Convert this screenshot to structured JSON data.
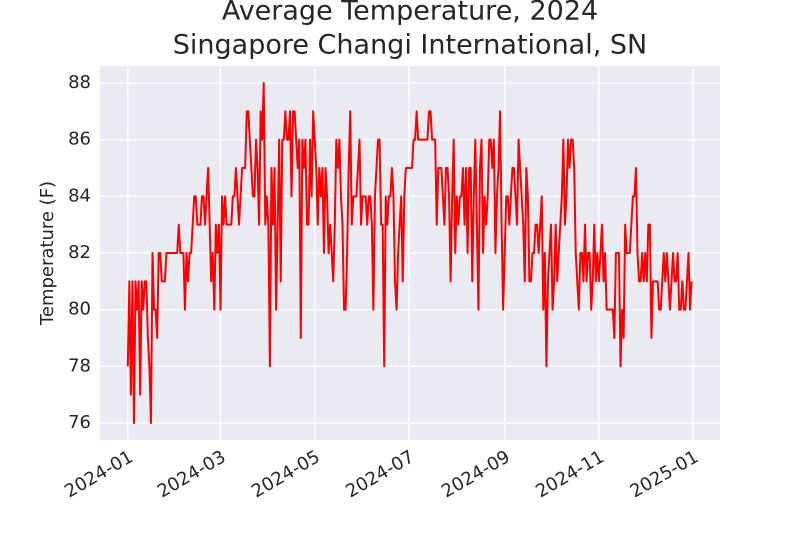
{
  "chart_data": {
    "type": "line",
    "title": "Average Temperature, 2024",
    "subtitle": "Singapore Changi International, SN",
    "y_label": "Temperature (F)",
    "color": "#ff0000",
    "grid": true,
    "xlim": [
      -18,
      383.4
    ],
    "ylim": [
      75.4,
      88.6
    ],
    "yticks": [
      76,
      78,
      80,
      82,
      84,
      86,
      88
    ],
    "xticks": [
      {
        "value": 0,
        "label": "2024-01"
      },
      {
        "value": 60,
        "label": "2024-03"
      },
      {
        "value": 121,
        "label": "2024-05"
      },
      {
        "value": 182,
        "label": "2024-07"
      },
      {
        "value": 244,
        "label": "2024-09"
      },
      {
        "value": 305,
        "label": "2024-11"
      },
      {
        "value": 366,
        "label": "2025-01"
      }
    ],
    "x": [
      0,
      1,
      2,
      3,
      4,
      5,
      6,
      7,
      8,
      9,
      10,
      11,
      12,
      13,
      14,
      15,
      16,
      17,
      18,
      19,
      20,
      21,
      22,
      23,
      24,
      25,
      26,
      27,
      28,
      29,
      30,
      31,
      32,
      33,
      34,
      35,
      36,
      37,
      38,
      39,
      40,
      41,
      42,
      43,
      44,
      45,
      46,
      47,
      48,
      49,
      50,
      51,
      52,
      53,
      54,
      55,
      56,
      57,
      58,
      59,
      60,
      61,
      62,
      63,
      64,
      65,
      66,
      67,
      68,
      69,
      70,
      71,
      72,
      73,
      74,
      75,
      76,
      77,
      78,
      79,
      80,
      81,
      82,
      83,
      84,
      85,
      86,
      87,
      88,
      89,
      90,
      91,
      92,
      93,
      94,
      95,
      96,
      97,
      98,
      99,
      100,
      101,
      102,
      103,
      104,
      105,
      106,
      107,
      108,
      109,
      110,
      111,
      112,
      113,
      114,
      115,
      116,
      117,
      118,
      119,
      120,
      121,
      122,
      123,
      124,
      125,
      126,
      127,
      128,
      129,
      130,
      131,
      132,
      133,
      134,
      135,
      136,
      137,
      138,
      139,
      140,
      141,
      142,
      143,
      144,
      145,
      146,
      147,
      148,
      149,
      150,
      151,
      152,
      153,
      154,
      155,
      156,
      157,
      158,
      159,
      160,
      161,
      162,
      163,
      164,
      165,
      166,
      167,
      168,
      169,
      170,
      171,
      172,
      173,
      174,
      175,
      176,
      177,
      178,
      179,
      180,
      181,
      182,
      183,
      184,
      185,
      186,
      187,
      188,
      189,
      190,
      191,
      192,
      193,
      194,
      195,
      196,
      197,
      198,
      199,
      200,
      201,
      202,
      203,
      204,
      205,
      206,
      207,
      208,
      209,
      210,
      211,
      212,
      213,
      214,
      215,
      216,
      217,
      218,
      219,
      220,
      221,
      222,
      223,
      224,
      225,
      226,
      227,
      228,
      229,
      230,
      231,
      232,
      233,
      234,
      235,
      236,
      237,
      238,
      239,
      240,
      241,
      242,
      243,
      244,
      245,
      246,
      247,
      248,
      249,
      250,
      251,
      252,
      253,
      254,
      255,
      256,
      257,
      258,
      259,
      260,
      261,
      262,
      263,
      264,
      265,
      266,
      267,
      268,
      269,
      270,
      271,
      272,
      273,
      274,
      275,
      276,
      277,
      278,
      279,
      280,
      281,
      282,
      283,
      284,
      285,
      286,
      287,
      288,
      289,
      290,
      291,
      292,
      293,
      294,
      295,
      296,
      297,
      298,
      299,
      300,
      301,
      302,
      303,
      304,
      305,
      306,
      307,
      308,
      309,
      310,
      311,
      312,
      313,
      314,
      315,
      316,
      317,
      318,
      319,
      320,
      321,
      322,
      323,
      324,
      325,
      326,
      327,
      328,
      329,
      330,
      331,
      332,
      333,
      334,
      335,
      336,
      337,
      338,
      339,
      340,
      341,
      342,
      343,
      344,
      345,
      346,
      347,
      348,
      349,
      350,
      351,
      352,
      353,
      354,
      355,
      356,
      357,
      358,
      359,
      360,
      361,
      362,
      363,
      364,
      365
    ],
    "values": [
      78,
      81,
      77,
      81,
      76,
      81,
      80,
      81,
      77,
      81,
      80,
      81,
      81,
      79,
      78,
      76,
      82,
      80,
      80,
      79,
      82,
      82,
      81,
      81,
      81,
      82,
      82,
      82,
      82,
      82,
      82,
      82,
      82,
      83,
      82,
      82,
      82,
      80,
      82,
      81,
      82,
      82,
      83,
      84,
      84,
      83,
      83,
      83,
      84,
      84,
      83,
      84,
      85,
      83,
      81,
      82,
      80,
      83,
      82,
      83,
      80,
      84,
      83,
      84,
      83,
      83,
      83,
      83,
      84,
      84,
      85,
      84,
      83,
      84,
      85,
      85,
      85,
      87,
      87,
      86,
      85,
      84,
      84,
      86,
      85,
      83,
      87,
      86,
      88,
      83,
      84,
      83,
      78,
      85,
      83,
      85,
      80,
      83,
      86,
      81,
      86,
      86,
      87,
      86,
      86,
      87,
      84,
      87,
      87,
      86,
      85,
      86,
      79,
      86,
      85,
      86,
      83,
      83,
      86,
      84,
      87,
      86,
      85,
      83,
      85,
      84,
      85,
      82,
      85,
      84,
      82,
      83,
      82,
      81,
      83,
      86,
      85,
      86,
      84,
      83,
      80,
      80,
      82,
      85,
      87,
      83,
      84,
      84,
      84,
      85,
      86,
      83,
      84,
      84,
      84,
      83,
      84,
      84,
      83,
      80,
      84,
      85,
      86,
      86,
      83,
      83,
      78,
      84,
      83,
      84,
      84,
      85,
      84,
      81,
      80,
      82,
      83,
      84,
      81,
      84,
      85,
      85,
      85,
      85,
      85,
      86,
      86,
      87,
      86,
      86,
      86,
      86,
      86,
      86,
      86,
      87,
      87,
      86,
      86,
      86,
      83,
      85,
      85,
      85,
      84,
      83,
      85,
      85,
      84,
      81,
      84,
      86,
      82,
      84,
      83,
      84,
      84,
      85,
      83,
      85,
      82,
      85,
      85,
      81,
      84,
      86,
      83,
      80,
      85,
      86,
      82,
      84,
      83,
      84,
      86,
      86,
      85,
      86,
      82,
      84,
      85,
      87,
      83,
      80,
      82,
      84,
      84,
      83,
      84,
      85,
      85,
      84,
      83,
      86,
      85,
      84,
      83,
      81,
      85,
      84,
      81,
      81,
      82,
      82,
      83,
      83,
      82,
      83,
      84,
      80,
      82,
      78,
      81,
      82,
      83,
      80,
      81,
      83,
      81,
      82,
      83,
      84,
      86,
      83,
      84,
      86,
      85,
      86,
      86,
      85,
      82,
      81,
      80,
      82,
      82,
      81,
      83,
      81,
      82,
      82,
      80,
      81,
      83,
      81,
      82,
      81,
      82,
      83,
      81,
      82,
      80,
      80,
      80,
      80,
      80,
      79,
      82,
      82,
      82,
      78,
      80,
      79,
      83,
      82,
      82,
      82,
      83,
      84,
      84,
      85,
      82,
      81,
      81,
      82,
      81,
      82,
      81,
      83,
      83,
      79,
      81,
      81,
      81,
      81,
      80,
      80,
      81,
      82,
      81,
      82,
      81,
      80,
      81,
      82,
      81,
      81,
      82,
      80,
      80,
      81,
      80,
      80,
      81,
      82,
      80,
      81
    ]
  }
}
